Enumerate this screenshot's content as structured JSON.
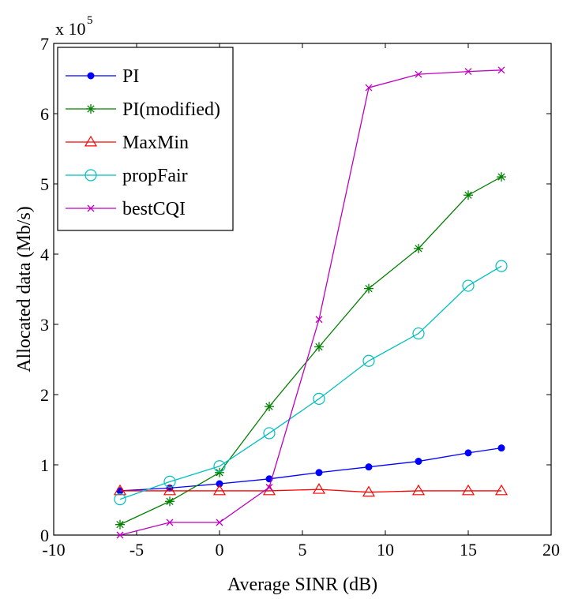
{
  "chart_data": {
    "type": "line",
    "xlabel": "Average SINR (dB)",
    "ylabel": "Allocated data (Mb/s)",
    "y_multiplier": {
      "base": "x 10",
      "exponent": "5"
    },
    "xlim": [
      -10,
      20
    ],
    "ylim": [
      0,
      7
    ],
    "xticks": [
      "-10",
      "-5",
      "0",
      "5",
      "10",
      "15",
      "20"
    ],
    "yticks": [
      "0",
      "1",
      "2",
      "3",
      "4",
      "5",
      "6",
      "7"
    ],
    "grid": false,
    "legend_position": "top-left",
    "series": [
      {
        "name": "PI",
        "color": "#0000ff",
        "marker": "dot",
        "x": [
          -6,
          -3,
          0,
          3,
          6,
          9,
          12,
          15,
          17
        ],
        "y": [
          0.63,
          0.67,
          0.73,
          0.8,
          0.89,
          0.97,
          1.05,
          1.17,
          1.24
        ]
      },
      {
        "name": "PI(modified)",
        "color": "#008000",
        "marker": "star",
        "x": [
          -6,
          -3,
          0,
          3,
          6,
          9,
          12,
          15,
          17
        ],
        "y": [
          0.15,
          0.48,
          0.89,
          1.83,
          2.68,
          3.51,
          4.08,
          4.84,
          5.1
        ]
      },
      {
        "name": "MaxMin",
        "color": "#ff0000",
        "marker": "triangle",
        "x": [
          -6,
          -3,
          0,
          3,
          6,
          9,
          12,
          15,
          17
        ],
        "y": [
          0.63,
          0.63,
          0.63,
          0.63,
          0.65,
          0.61,
          0.63,
          0.63,
          0.63
        ]
      },
      {
        "name": "propFair",
        "color": "#00bfbf",
        "marker": "circle",
        "x": [
          -6,
          -3,
          0,
          3,
          6,
          9,
          12,
          15,
          17
        ],
        "y": [
          0.51,
          0.76,
          0.98,
          1.45,
          1.94,
          2.48,
          2.87,
          3.55,
          3.83
        ]
      },
      {
        "name": "bestCQI",
        "color": "#bf00bf",
        "marker": "x",
        "x": [
          -6,
          -3,
          0,
          3,
          6,
          9,
          12,
          15,
          17
        ],
        "y": [
          0.0,
          0.18,
          0.18,
          0.68,
          3.07,
          6.37,
          6.56,
          6.6,
          6.62
        ]
      }
    ]
  }
}
